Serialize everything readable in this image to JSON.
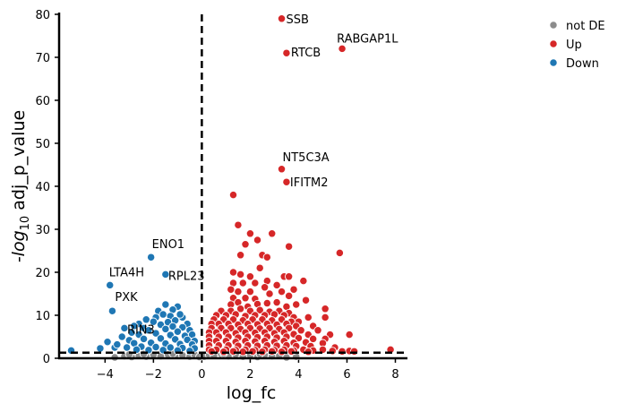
{
  "chart_data": {
    "type": "scatter",
    "title": "",
    "xlabel": "log_fc",
    "ylabel_prefix": "-log",
    "ylabel_sub": "10",
    "ylabel_suffix": " adj_p_value",
    "xlim": [
      -5.9,
      8.5
    ],
    "ylim": [
      0,
      80
    ],
    "xticks": [
      -4,
      -2,
      0,
      2,
      4,
      6,
      8
    ],
    "xtick_labels": [
      "−4",
      "−2",
      "0",
      "2",
      "4",
      "6",
      "8"
    ],
    "yticks": [
      0,
      10,
      20,
      30,
      40,
      50,
      60,
      70,
      80
    ],
    "threshold_lines": {
      "log_fc": 0,
      "neg_log10_adj_p": 1.3
    },
    "grid": false,
    "legend_position": "right",
    "colors": {
      "not DE": "#8c8c8c",
      "Up": "#d62728",
      "Down": "#1f77b4"
    },
    "series": [
      {
        "name": "not DE",
        "points": [
          [
            -3.6,
            0.2
          ],
          [
            -3.2,
            0.5
          ],
          [
            -2.9,
            0.3
          ],
          [
            -2.6,
            0.6
          ],
          [
            -2.3,
            0.4
          ],
          [
            -2.0,
            0.8
          ],
          [
            -1.7,
            0.5
          ],
          [
            -1.4,
            0.9
          ],
          [
            -1.1,
            0.6
          ],
          [
            -0.8,
            0.7
          ],
          [
            -0.5,
            0.4
          ],
          [
            -0.3,
            0.9
          ],
          [
            -0.1,
            0.3
          ],
          [
            0.1,
            0.4
          ],
          [
            0.3,
            0.8
          ],
          [
            0.5,
            0.6
          ],
          [
            0.8,
            1.0
          ],
          [
            1.1,
            0.5
          ],
          [
            1.4,
            0.9
          ],
          [
            1.7,
            0.4
          ],
          [
            2.0,
            0.7
          ],
          [
            2.3,
            0.3
          ],
          [
            2.6,
            0.8
          ],
          [
            2.9,
            0.5
          ],
          [
            3.2,
            0.6
          ],
          [
            3.5,
            0.2
          ],
          [
            3.9,
            0.4
          ],
          [
            -3.0,
            0.9
          ],
          [
            -2.4,
            1.0
          ],
          [
            -1.2,
            1.1
          ],
          [
            0.9,
            1.1
          ],
          [
            2.4,
            1.0
          ]
        ]
      },
      {
        "name": "Up",
        "points": [
          [
            3.3,
            79
          ],
          [
            3.5,
            71
          ],
          [
            5.8,
            72
          ],
          [
            3.3,
            44
          ],
          [
            3.5,
            41
          ],
          [
            1.3,
            38
          ],
          [
            1.5,
            31
          ],
          [
            2.0,
            29
          ],
          [
            2.3,
            27.5
          ],
          [
            2.9,
            29
          ],
          [
            3.6,
            26
          ],
          [
            1.8,
            26.5
          ],
          [
            1.6,
            24
          ],
          [
            2.5,
            24
          ],
          [
            2.7,
            23.5
          ],
          [
            5.7,
            24.5
          ],
          [
            1.3,
            20
          ],
          [
            1.6,
            19.5
          ],
          [
            2.0,
            19
          ],
          [
            2.4,
            21
          ],
          [
            3.4,
            19
          ],
          [
            3.6,
            19
          ],
          [
            4.2,
            18
          ],
          [
            1.3,
            17.5
          ],
          [
            1.7,
            17.5
          ],
          [
            2.2,
            17.5
          ],
          [
            2.7,
            18
          ],
          [
            3.1,
            17
          ],
          [
            3.3,
            15.5
          ],
          [
            3.8,
            16
          ],
          [
            1.2,
            16
          ],
          [
            1.5,
            15.5
          ],
          [
            2.0,
            15.5
          ],
          [
            2.6,
            16.5
          ],
          [
            1.3,
            14
          ],
          [
            1.8,
            14
          ],
          [
            2.2,
            13.8
          ],
          [
            2.8,
            15
          ],
          [
            3.6,
            14.5
          ],
          [
            4.3,
            13.5
          ],
          [
            1.2,
            12.5
          ],
          [
            1.5,
            13
          ],
          [
            1.9,
            12
          ],
          [
            2.3,
            12.6
          ],
          [
            2.7,
            12.8
          ],
          [
            3.1,
            13
          ],
          [
            3.5,
            12
          ],
          [
            3.9,
            12.5
          ],
          [
            0.8,
            11
          ],
          [
            1.2,
            11
          ],
          [
            1.6,
            11.5
          ],
          [
            2.0,
            11
          ],
          [
            2.4,
            11.2
          ],
          [
            2.8,
            10.8
          ],
          [
            3.2,
            11
          ],
          [
            3.6,
            10.5
          ],
          [
            5.1,
            11.5
          ],
          [
            0.6,
            10
          ],
          [
            1.0,
            10
          ],
          [
            1.4,
            10.2
          ],
          [
            1.8,
            9.8
          ],
          [
            2.2,
            10
          ],
          [
            2.6,
            10
          ],
          [
            3.0,
            10.2
          ],
          [
            3.4,
            10
          ],
          [
            3.8,
            9.5
          ],
          [
            4.4,
            9.5
          ],
          [
            5.1,
            9.5
          ],
          [
            0.5,
            9
          ],
          [
            0.9,
            9
          ],
          [
            1.3,
            9
          ],
          [
            1.7,
            8.8
          ],
          [
            2.1,
            9
          ],
          [
            2.5,
            9
          ],
          [
            2.9,
            8.8
          ],
          [
            3.3,
            9
          ],
          [
            3.7,
            8.5
          ],
          [
            4.0,
            8.5
          ],
          [
            0.4,
            8
          ],
          [
            0.7,
            8
          ],
          [
            1.1,
            8
          ],
          [
            1.5,
            7.8
          ],
          [
            1.9,
            8
          ],
          [
            2.3,
            7.9
          ],
          [
            2.7,
            8
          ],
          [
            3.1,
            7.8
          ],
          [
            3.5,
            8
          ],
          [
            3.9,
            7.5
          ],
          [
            4.6,
            7.5
          ],
          [
            0.4,
            7
          ],
          [
            0.8,
            7
          ],
          [
            1.2,
            7
          ],
          [
            1.6,
            6.8
          ],
          [
            2.0,
            7
          ],
          [
            2.4,
            6.9
          ],
          [
            2.8,
            7
          ],
          [
            3.2,
            6.8
          ],
          [
            3.6,
            7
          ],
          [
            4.1,
            6.5
          ],
          [
            4.8,
            6.5
          ],
          [
            0.3,
            6
          ],
          [
            0.6,
            6
          ],
          [
            1.0,
            6
          ],
          [
            1.4,
            5.8
          ],
          [
            1.8,
            6
          ],
          [
            2.2,
            5.9
          ],
          [
            2.6,
            6
          ],
          [
            3.0,
            5.8
          ],
          [
            3.4,
            6
          ],
          [
            3.8,
            5.6
          ],
          [
            4.4,
            5.5
          ],
          [
            5.3,
            5.5
          ],
          [
            6.1,
            5.5
          ],
          [
            0.3,
            5
          ],
          [
            0.7,
            5
          ],
          [
            1.1,
            5
          ],
          [
            1.5,
            4.8
          ],
          [
            1.9,
            5
          ],
          [
            2.3,
            4.9
          ],
          [
            2.7,
            5
          ],
          [
            3.1,
            4.8
          ],
          [
            3.5,
            5
          ],
          [
            4.0,
            4.7
          ],
          [
            4.6,
            4.5
          ],
          [
            5.1,
            4.5
          ],
          [
            0.3,
            4
          ],
          [
            0.6,
            4
          ],
          [
            1.0,
            4
          ],
          [
            1.4,
            3.8
          ],
          [
            1.8,
            4
          ],
          [
            2.2,
            3.9
          ],
          [
            2.6,
            4
          ],
          [
            3.0,
            3.8
          ],
          [
            3.4,
            4
          ],
          [
            3.8,
            3.6
          ],
          [
            4.3,
            3.7
          ],
          [
            5.0,
            3.5
          ],
          [
            0.3,
            3
          ],
          [
            0.7,
            3
          ],
          [
            1.1,
            3
          ],
          [
            1.5,
            2.9
          ],
          [
            1.9,
            3
          ],
          [
            2.3,
            2.9
          ],
          [
            2.7,
            3
          ],
          [
            3.1,
            2.9
          ],
          [
            3.5,
            3
          ],
          [
            3.9,
            2.8
          ],
          [
            4.5,
            2.8
          ],
          [
            5.5,
            2.5
          ],
          [
            0.3,
            2
          ],
          [
            0.6,
            2
          ],
          [
            1.0,
            2
          ],
          [
            1.4,
            1.9
          ],
          [
            1.8,
            2
          ],
          [
            2.2,
            1.9
          ],
          [
            2.6,
            2
          ],
          [
            3.0,
            1.9
          ],
          [
            3.4,
            2
          ],
          [
            3.8,
            1.8
          ],
          [
            4.2,
            2
          ],
          [
            4.6,
            1.8
          ],
          [
            5.0,
            2
          ],
          [
            5.4,
            1.7
          ],
          [
            5.8,
            1.6
          ],
          [
            6.1,
            1.7
          ],
          [
            6.3,
            1.6
          ],
          [
            7.8,
            2
          ],
          [
            0.4,
            1.6
          ],
          [
            0.9,
            1.5
          ],
          [
            1.3,
            1.6
          ],
          [
            1.7,
            1.5
          ],
          [
            2.1,
            1.6
          ],
          [
            2.5,
            1.5
          ],
          [
            2.9,
            1.6
          ],
          [
            3.3,
            1.5
          ],
          [
            3.7,
            1.6
          ],
          [
            4.4,
            1.5
          ]
        ]
      },
      {
        "name": "Down",
        "points": [
          [
            -2.1,
            23.5
          ],
          [
            -1.5,
            19.5
          ],
          [
            -3.8,
            17
          ],
          [
            -3.7,
            11
          ],
          [
            -3.2,
            7
          ],
          [
            -5.4,
            1.8
          ],
          [
            -4.2,
            2.3
          ],
          [
            -3.9,
            3.8
          ],
          [
            -3.6,
            2.5
          ],
          [
            -1.5,
            12.5
          ],
          [
            -1.0,
            12
          ],
          [
            -1.2,
            11.3
          ],
          [
            -1.8,
            11
          ],
          [
            -0.8,
            9.5
          ],
          [
            -1.6,
            10.2
          ],
          [
            -2.3,
            9
          ],
          [
            -2.6,
            8
          ],
          [
            -1.3,
            9.8
          ],
          [
            -1.9,
            9.5
          ],
          [
            -1.1,
            8.8
          ],
          [
            -0.9,
            10.2
          ],
          [
            -2.0,
            8.5
          ],
          [
            -2.8,
            7.5
          ],
          [
            -1.4,
            8.4
          ],
          [
            -0.6,
            8
          ],
          [
            -2.4,
            7
          ],
          [
            -1.7,
            7.8
          ],
          [
            -0.8,
            7.2
          ],
          [
            -1.2,
            7.4
          ],
          [
            -2.9,
            6
          ],
          [
            -2.2,
            6.5
          ],
          [
            -1.5,
            6.8
          ],
          [
            -1.0,
            6.2
          ],
          [
            -0.5,
            6.5
          ],
          [
            -3.3,
            5
          ],
          [
            -2.6,
            5.5
          ],
          [
            -1.9,
            5.8
          ],
          [
            -1.3,
            5.4
          ],
          [
            -0.7,
            5.2
          ],
          [
            -0.4,
            5.5
          ],
          [
            -3.0,
            4.2
          ],
          [
            -2.4,
            4.5
          ],
          [
            -1.7,
            4.6
          ],
          [
            -1.1,
            4.4
          ],
          [
            -0.6,
            4.3
          ],
          [
            -0.3,
            4
          ],
          [
            -3.5,
            3.2
          ],
          [
            -2.8,
            3.5
          ],
          [
            -2.1,
            3.6
          ],
          [
            -1.5,
            3.4
          ],
          [
            -0.9,
            3.3
          ],
          [
            -0.4,
            3.2
          ],
          [
            -3.1,
            2.5
          ],
          [
            -2.5,
            2.7
          ],
          [
            -1.9,
            2.6
          ],
          [
            -1.3,
            2.5
          ],
          [
            -0.8,
            2.4
          ],
          [
            -0.3,
            2.3
          ],
          [
            -2.7,
            2
          ],
          [
            -2.2,
            1.9
          ],
          [
            -1.6,
            1.9
          ],
          [
            -1.0,
            1.8
          ],
          [
            -0.5,
            1.7
          ]
        ]
      }
    ],
    "annotations": [
      {
        "text": "SSB",
        "x": 3.3,
        "y": 79
      },
      {
        "text": "RTCB",
        "x": 3.5,
        "y": 71
      },
      {
        "text": "RABGAP1L",
        "x": 5.8,
        "y": 72
      },
      {
        "text": "NT5C3A",
        "x": 3.3,
        "y": 44
      },
      {
        "text": "IFITM2",
        "x": 3.5,
        "y": 41
      },
      {
        "text": "ENO1",
        "x": -2.1,
        "y": 23.5
      },
      {
        "text": "RPL23",
        "x": -1.5,
        "y": 19.5
      },
      {
        "text": "LTA4H",
        "x": -3.8,
        "y": 17
      },
      {
        "text": "PXK",
        "x": -3.7,
        "y": 11
      },
      {
        "text": "RIN3",
        "x": -3.2,
        "y": 7
      }
    ],
    "legend": [
      "not DE",
      "Up",
      "Down"
    ]
  }
}
